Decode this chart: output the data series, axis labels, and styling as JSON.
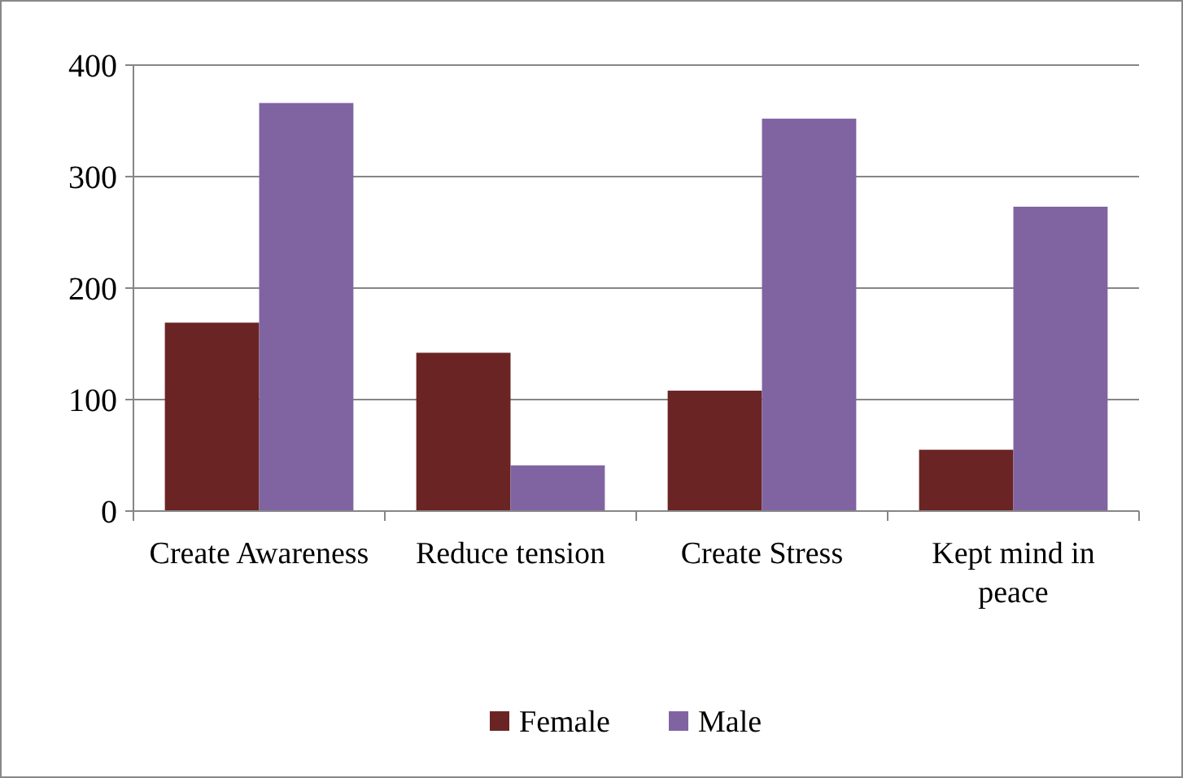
{
  "chart_data": {
    "type": "bar",
    "categories": [
      "Create Awareness",
      "Reduce tension",
      "Create Stress",
      "Kept mind in peace"
    ],
    "series": [
      {
        "name": "Female",
        "color": "#6b2424",
        "values": [
          169,
          142,
          108,
          55
        ]
      },
      {
        "name": "Male",
        "color": "#8064a2",
        "values": [
          366,
          41,
          352,
          273
        ]
      }
    ],
    "ylim": [
      0,
      400
    ],
    "yticks": [
      0,
      100,
      200,
      300,
      400
    ],
    "grid": "y",
    "legend": "bottom"
  }
}
